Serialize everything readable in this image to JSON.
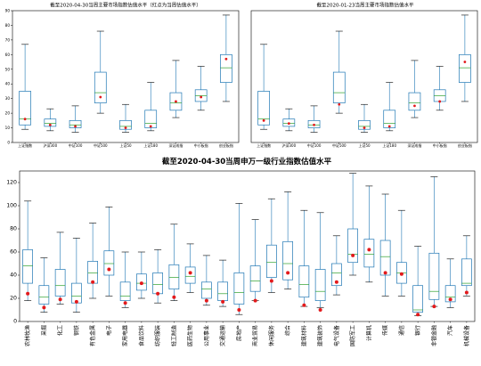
{
  "chart_data": [
    {
      "type": "box",
      "title": "截至2020-04-30当周主要市场指数估值水平（红点为当周估值水平）",
      "ylim": [
        0,
        90
      ],
      "yticks": [
        0,
        10,
        20,
        30,
        40,
        50,
        60,
        70,
        80,
        90
      ],
      "grid": false,
      "categories": [
        "上证指数",
        "沪深300",
        "中证100",
        "中证500",
        "上证50",
        "上证180",
        "深证成指",
        "中小板指",
        "创业板指"
      ],
      "boxes": [
        {
          "min": 9,
          "q1": 12,
          "median": 16,
          "q3": 35,
          "max": 67
        },
        {
          "min": 8,
          "q1": 11,
          "median": 13,
          "q3": 16,
          "max": 23
        },
        {
          "min": 7,
          "q1": 10,
          "median": 12,
          "q3": 15,
          "max": 25
        },
        {
          "min": 20,
          "q1": 27,
          "median": 34,
          "q3": 48,
          "max": 76
        },
        {
          "min": 7,
          "q1": 9,
          "median": 11,
          "q3": 15,
          "max": 26
        },
        {
          "min": 8,
          "q1": 10,
          "median": 13,
          "q3": 22,
          "max": 41
        },
        {
          "min": 17,
          "q1": 22,
          "median": 27,
          "q3": 34,
          "max": 56
        },
        {
          "min": 22,
          "q1": 28,
          "median": 32,
          "q3": 36,
          "max": 52
        },
        {
          "min": 28,
          "q1": 41,
          "median": 51,
          "q3": 60,
          "max": 87
        }
      ],
      "current": [
        16,
        12,
        11,
        31,
        10,
        11,
        28,
        31,
        57
      ]
    },
    {
      "type": "box",
      "title": "截至2020-01-23当周主要市场指数估值水平",
      "grid": false,
      "categories": [
        "上证指数",
        "沪深300",
        "中证100",
        "中证500",
        "上证50",
        "上证180",
        "深证成指",
        "中小板指",
        "创业板指"
      ],
      "boxes": [
        {
          "min": 9,
          "q1": 12,
          "median": 16,
          "q3": 35,
          "max": 67
        },
        {
          "min": 8,
          "q1": 11,
          "median": 13,
          "q3": 16,
          "max": 23
        },
        {
          "min": 7,
          "q1": 10,
          "median": 12,
          "q3": 15,
          "max": 25
        },
        {
          "min": 20,
          "q1": 27,
          "median": 34,
          "q3": 48,
          "max": 76
        },
        {
          "min": 7,
          "q1": 9,
          "median": 11,
          "q3": 15,
          "max": 26
        },
        {
          "min": 8,
          "q1": 10,
          "median": 13,
          "q3": 22,
          "max": 41
        },
        {
          "min": 17,
          "q1": 22,
          "median": 27,
          "q3": 34,
          "max": 56
        },
        {
          "min": 22,
          "q1": 28,
          "median": 32,
          "q3": 36,
          "max": 52
        },
        {
          "min": 28,
          "q1": 41,
          "median": 51,
          "q3": 60,
          "max": 87
        }
      ],
      "current": [
        15,
        13,
        12,
        26,
        10,
        11,
        25,
        28,
        55
      ]
    },
    {
      "type": "box",
      "title": "截至2020-04-30当周申万一级行业指数估值水平",
      "ylim": [
        0,
        130
      ],
      "yticks": [
        0,
        20,
        40,
        60,
        80,
        100,
        120
      ],
      "grid": false,
      "categories": [
        "农林牧渔",
        "采掘",
        "化工",
        "钢铁",
        "有色金属",
        "电子",
        "家用电器",
        "食品饮料",
        "纺织服装",
        "轻工制造",
        "医药生物",
        "公用事业",
        "交通运输",
        "房地产",
        "商业贸易",
        "休闲服务",
        "综合",
        "建筑材料",
        "建筑装饰",
        "电气设备",
        "国防军工",
        "计算机",
        "传媒",
        "通信",
        "银行",
        "非银金融",
        "汽车",
        "机械设备"
      ],
      "boxes": [
        {
          "min": 18,
          "q1": 33,
          "median": 48,
          "q3": 62,
          "max": 104
        },
        {
          "min": 8,
          "q1": 15,
          "median": 21,
          "q3": 31,
          "max": 55
        },
        {
          "min": 15,
          "q1": 22,
          "median": 31,
          "q3": 45,
          "max": 77
        },
        {
          "min": 8,
          "q1": 16,
          "median": 22,
          "q3": 33,
          "max": 72
        },
        {
          "min": 20,
          "q1": 33,
          "median": 42,
          "q3": 52,
          "max": 85
        },
        {
          "min": 22,
          "q1": 40,
          "median": 50,
          "q3": 61,
          "max": 99
        },
        {
          "min": 12,
          "q1": 18,
          "median": 22,
          "q3": 34,
          "max": 60
        },
        {
          "min": 20,
          "q1": 27,
          "median": 33,
          "q3": 41,
          "max": 60
        },
        {
          "min": 16,
          "q1": 24,
          "median": 32,
          "q3": 42,
          "max": 62
        },
        {
          "min": 18,
          "q1": 28,
          "median": 38,
          "q3": 49,
          "max": 84
        },
        {
          "min": 25,
          "q1": 33,
          "median": 39,
          "q3": 47,
          "max": 67
        },
        {
          "min": 14,
          "q1": 20,
          "median": 28,
          "q3": 34,
          "max": 57
        },
        {
          "min": 13,
          "q1": 18,
          "median": 24,
          "q3": 34,
          "max": 53
        },
        {
          "min": 6,
          "q1": 15,
          "median": 25,
          "q3": 42,
          "max": 102
        },
        {
          "min": 18,
          "q1": 26,
          "median": 35,
          "q3": 48,
          "max": 88
        },
        {
          "min": 25,
          "q1": 38,
          "median": 51,
          "q3": 66,
          "max": 106
        },
        {
          "min": 28,
          "q1": 36,
          "median": 50,
          "q3": 69,
          "max": 112
        },
        {
          "min": 13,
          "q1": 21,
          "median": 32,
          "q3": 48,
          "max": 96
        },
        {
          "min": 12,
          "q1": 18,
          "median": 26,
          "q3": 45,
          "max": 94
        },
        {
          "min": 23,
          "q1": 31,
          "median": 42,
          "q3": 50,
          "max": 74
        },
        {
          "min": 40,
          "q1": 51,
          "median": 58,
          "q3": 80,
          "max": 128
        },
        {
          "min": 34,
          "q1": 47,
          "median": 58,
          "q3": 71,
          "max": 117
        },
        {
          "min": 22,
          "q1": 40,
          "median": 56,
          "q3": 70,
          "max": 110
        },
        {
          "min": 22,
          "q1": 33,
          "median": 42,
          "q3": 51,
          "max": 96
        },
        {
          "min": 5,
          "q1": 8,
          "median": 10,
          "q3": 31,
          "max": 65
        },
        {
          "min": 13,
          "q1": 19,
          "median": 26,
          "q3": 59,
          "max": 125
        },
        {
          "min": 12,
          "q1": 17,
          "median": 21,
          "q3": 31,
          "max": 54
        },
        {
          "min": 22,
          "q1": 31,
          "median": 33,
          "q3": 54,
          "max": 74
        }
      ],
      "current": [
        24,
        12,
        19,
        17,
        34,
        45,
        16,
        33,
        24,
        21,
        42,
        18,
        17,
        10,
        18,
        35,
        42,
        14,
        10,
        34,
        57,
        62,
        42,
        41,
        6,
        13,
        19,
        25
      ]
    }
  ],
  "colors": {
    "box": "#1f77b4",
    "median": "#2ca02c",
    "current": "#e31a1c",
    "whisker": "#000000"
  }
}
